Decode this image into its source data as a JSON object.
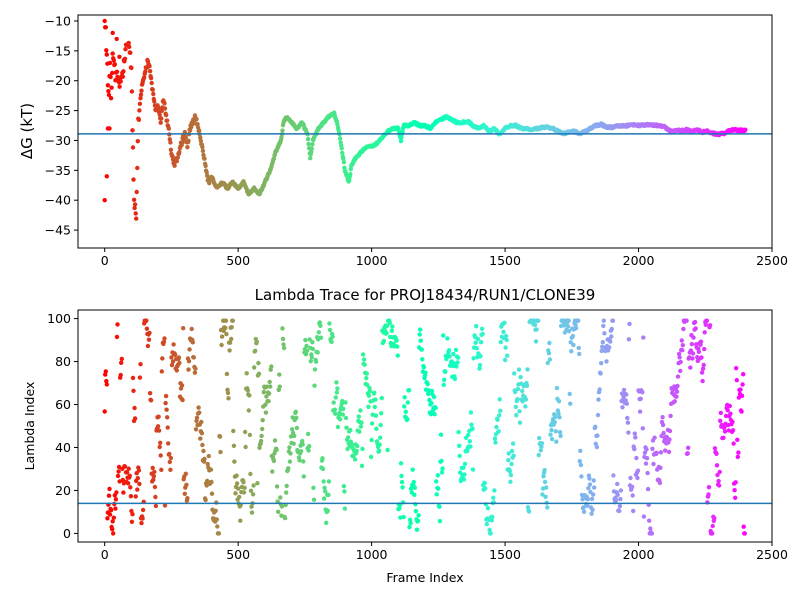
{
  "chart_data": [
    {
      "type": "scatter",
      "title": "",
      "xlabel": "",
      "ylabel": "ΔG (kT)",
      "xlim": [
        -100,
        2500
      ],
      "ylim": [
        -48,
        -9
      ],
      "x_ticks": [
        0,
        500,
        1000,
        1500,
        2000,
        2500
      ],
      "y_ticks": [
        -45,
        -40,
        -35,
        -30,
        -25,
        -20,
        -15,
        -10
      ],
      "colormap": "rainbow",
      "reference_line": {
        "y": -28.9,
        "color": "#1f77b4"
      },
      "trace": [
        [
          0,
          -10
        ],
        [
          4,
          -12
        ],
        [
          8,
          -16
        ],
        [
          12,
          -20
        ],
        [
          16,
          -22
        ],
        [
          20,
          -18
        ],
        [
          25,
          -23
        ],
        [
          30,
          -15
        ],
        [
          40,
          -19
        ],
        [
          50,
          -20
        ],
        [
          60,
          -21
        ],
        [
          70,
          -18
        ],
        [
          80,
          -15
        ],
        [
          90,
          -14
        ],
        [
          100,
          -18
        ],
        [
          105,
          -30
        ],
        [
          110,
          -40
        ],
        [
          118,
          -42
        ],
        [
          125,
          -28
        ],
        [
          130,
          -25
        ],
        [
          140,
          -21
        ],
        [
          150,
          -19
        ],
        [
          160,
          -17
        ],
        [
          170,
          -18
        ],
        [
          180,
          -22
        ],
        [
          190,
          -25
        ],
        [
          200,
          -24
        ],
        [
          210,
          -27
        ],
        [
          220,
          -23
        ],
        [
          230,
          -26
        ],
        [
          240,
          -28
        ],
        [
          250,
          -32
        ],
        [
          260,
          -34
        ],
        [
          270,
          -33
        ],
        [
          280,
          -32
        ],
        [
          290,
          -30
        ],
        [
          300,
          -29
        ],
        [
          310,
          -31
        ],
        [
          320,
          -28
        ],
        [
          330,
          -27
        ],
        [
          340,
          -26
        ],
        [
          350,
          -28
        ],
        [
          360,
          -30
        ],
        [
          370,
          -32
        ],
        [
          380,
          -35
        ],
        [
          390,
          -37
        ],
        [
          400,
          -36
        ],
        [
          420,
          -38
        ],
        [
          440,
          -37
        ],
        [
          460,
          -38
        ],
        [
          480,
          -37
        ],
        [
          500,
          -38
        ],
        [
          520,
          -37
        ],
        [
          540,
          -39
        ],
        [
          560,
          -38
        ],
        [
          580,
          -39
        ],
        [
          600,
          -37
        ],
        [
          620,
          -35
        ],
        [
          640,
          -32
        ],
        [
          660,
          -30
        ],
        [
          670,
          -27
        ],
        [
          680,
          -26
        ],
        [
          700,
          -27
        ],
        [
          720,
          -28
        ],
        [
          740,
          -27
        ],
        [
          760,
          -29
        ],
        [
          770,
          -33
        ],
        [
          780,
          -30
        ],
        [
          790,
          -29
        ],
        [
          800,
          -28
        ],
        [
          820,
          -27
        ],
        [
          840,
          -26
        ],
        [
          860,
          -25.5
        ],
        [
          870,
          -27
        ],
        [
          880,
          -29
        ],
        [
          890,
          -32
        ],
        [
          900,
          -35
        ],
        [
          915,
          -37
        ],
        [
          925,
          -34
        ],
        [
          940,
          -33
        ],
        [
          960,
          -32
        ],
        [
          980,
          -31
        ],
        [
          1000,
          -31
        ],
        [
          1020,
          -30.5
        ],
        [
          1040,
          -29.5
        ],
        [
          1060,
          -28.5
        ],
        [
          1080,
          -28
        ],
        [
          1100,
          -28
        ],
        [
          1110,
          -30
        ],
        [
          1120,
          -27.5
        ],
        [
          1140,
          -27.5
        ],
        [
          1160,
          -27
        ],
        [
          1180,
          -27.5
        ],
        [
          1200,
          -27.5
        ],
        [
          1220,
          -28
        ],
        [
          1240,
          -27
        ],
        [
          1260,
          -26.5
        ],
        [
          1280,
          -26
        ],
        [
          1300,
          -26.5
        ],
        [
          1320,
          -27
        ],
        [
          1340,
          -27
        ],
        [
          1360,
          -26.8
        ],
        [
          1380,
          -27.5
        ],
        [
          1400,
          -28
        ],
        [
          1420,
          -27.5
        ],
        [
          1440,
          -28.5
        ],
        [
          1460,
          -28
        ],
        [
          1480,
          -29
        ],
        [
          1500,
          -28
        ],
        [
          1520,
          -27.5
        ],
        [
          1540,
          -27.5
        ],
        [
          1560,
          -28
        ],
        [
          1580,
          -28
        ],
        [
          1600,
          -28.2
        ],
        [
          1620,
          -28
        ],
        [
          1640,
          -27.8
        ],
        [
          1660,
          -27.8
        ],
        [
          1680,
          -28
        ],
        [
          1700,
          -28.5
        ],
        [
          1720,
          -28.8
        ],
        [
          1740,
          -28.6
        ],
        [
          1760,
          -28.5
        ],
        [
          1780,
          -28.8
        ],
        [
          1800,
          -28.5
        ],
        [
          1820,
          -28
        ],
        [
          1840,
          -27.5
        ],
        [
          1860,
          -27.3
        ],
        [
          1880,
          -27.8
        ],
        [
          1900,
          -27.8
        ],
        [
          1920,
          -27.5
        ],
        [
          1940,
          -27.6
        ],
        [
          1960,
          -27.5
        ],
        [
          1980,
          -27.4
        ],
        [
          2000,
          -27.5
        ],
        [
          2020,
          -27.4
        ],
        [
          2040,
          -27.4
        ],
        [
          2060,
          -27.5
        ],
        [
          2080,
          -27.5
        ],
        [
          2100,
          -27.8
        ],
        [
          2120,
          -28.5
        ],
        [
          2140,
          -28.3
        ],
        [
          2160,
          -28.4
        ],
        [
          2180,
          -28.2
        ],
        [
          2200,
          -28.5
        ],
        [
          2220,
          -28.3
        ],
        [
          2240,
          -28.6
        ],
        [
          2260,
          -28.4
        ],
        [
          2280,
          -28.8
        ],
        [
          2300,
          -29
        ],
        [
          2320,
          -28.8
        ],
        [
          2340,
          -28.3
        ],
        [
          2360,
          -28.2
        ],
        [
          2380,
          -28.3
        ],
        [
          2400,
          -28.3
        ]
      ]
    },
    {
      "type": "scatter",
      "title": "Lambda Trace for PROJ18434/RUN1/CLONE39",
      "xlabel": "Frame Index",
      "ylabel": "Lambda Index",
      "xlim": [
        -100,
        2500
      ],
      "ylim": [
        -4,
        104
      ],
      "x_ticks": [
        0,
        500,
        1000,
        1500,
        2000,
        2500
      ],
      "y_ticks": [
        0,
        20,
        40,
        60,
        80,
        100
      ],
      "colormap": "rainbow",
      "reference_line": {
        "y": 14,
        "color": "#1f77b4"
      },
      "n_points": 2400,
      "value_range": [
        0,
        99
      ]
    }
  ]
}
